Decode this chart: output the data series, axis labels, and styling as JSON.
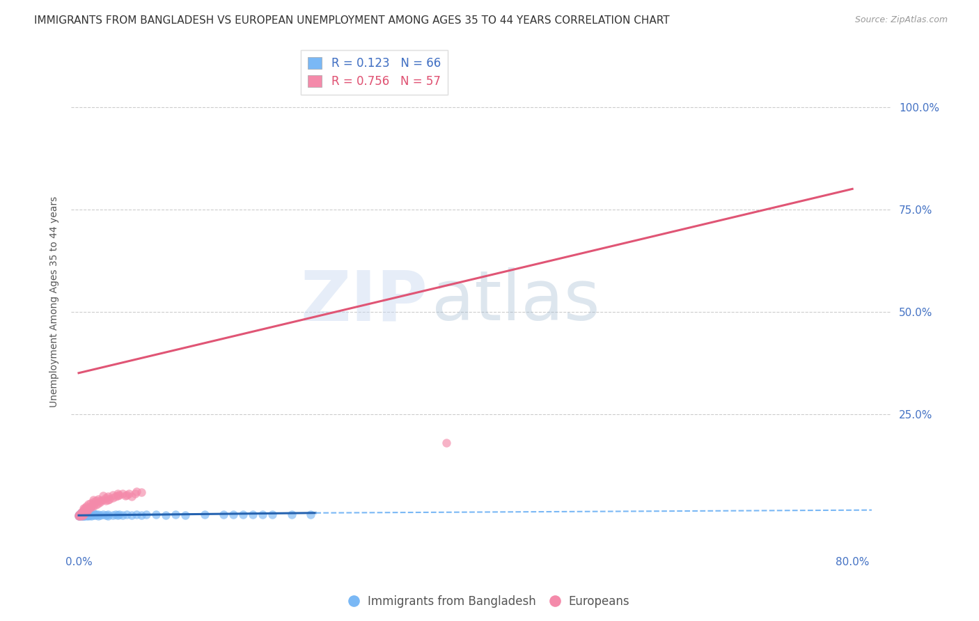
{
  "title": "IMMIGRANTS FROM BANGLADESH VS EUROPEAN UNEMPLOYMENT AMONG AGES 35 TO 44 YEARS CORRELATION CHART",
  "source": "Source: ZipAtlas.com",
  "ylabel": "Unemployment Among Ages 35 to 44 years",
  "ytick_labels": [
    "25.0%",
    "50.0%",
    "75.0%",
    "100.0%"
  ],
  "ytick_values": [
    0.25,
    0.5,
    0.75,
    1.0
  ],
  "xlim": [
    -0.008,
    0.84
  ],
  "ylim": [
    -0.08,
    1.13
  ],
  "blue_scatter": [
    [
      0.0,
      0.0
    ],
    [
      0.0,
      0.002
    ],
    [
      0.001,
      0.0
    ],
    [
      0.001,
      0.003
    ],
    [
      0.001,
      0.005
    ],
    [
      0.002,
      0.0
    ],
    [
      0.002,
      0.002
    ],
    [
      0.002,
      0.007
    ],
    [
      0.003,
      0.0
    ],
    [
      0.003,
      0.003
    ],
    [
      0.003,
      0.005
    ],
    [
      0.003,
      0.01
    ],
    [
      0.004,
      0.0
    ],
    [
      0.004,
      0.004
    ],
    [
      0.004,
      0.008
    ],
    [
      0.005,
      0.0
    ],
    [
      0.005,
      0.003
    ],
    [
      0.005,
      0.006
    ],
    [
      0.006,
      0.0
    ],
    [
      0.006,
      0.003
    ],
    [
      0.006,
      0.007
    ],
    [
      0.007,
      0.002
    ],
    [
      0.007,
      0.005
    ],
    [
      0.008,
      0.0
    ],
    [
      0.008,
      0.004
    ],
    [
      0.009,
      0.002
    ],
    [
      0.009,
      0.006
    ],
    [
      0.01,
      0.0
    ],
    [
      0.01,
      0.003
    ],
    [
      0.012,
      0.002
    ],
    [
      0.012,
      0.006
    ],
    [
      0.013,
      0.0
    ],
    [
      0.015,
      0.003
    ],
    [
      0.015,
      0.007
    ],
    [
      0.017,
      0.002
    ],
    [
      0.018,
      0.004
    ],
    [
      0.02,
      0.0
    ],
    [
      0.02,
      0.005
    ],
    [
      0.022,
      0.003
    ],
    [
      0.025,
      0.005
    ],
    [
      0.028,
      0.002
    ],
    [
      0.03,
      0.0
    ],
    [
      0.03,
      0.005
    ],
    [
      0.035,
      0.003
    ],
    [
      0.038,
      0.005
    ],
    [
      0.04,
      0.002
    ],
    [
      0.042,
      0.004
    ],
    [
      0.045,
      0.003
    ],
    [
      0.05,
      0.005
    ],
    [
      0.055,
      0.003
    ],
    [
      0.06,
      0.004
    ],
    [
      0.065,
      0.003
    ],
    [
      0.07,
      0.005
    ],
    [
      0.08,
      0.004
    ],
    [
      0.09,
      0.003
    ],
    [
      0.1,
      0.004
    ],
    [
      0.11,
      0.003
    ],
    [
      0.13,
      0.005
    ],
    [
      0.15,
      0.004
    ],
    [
      0.16,
      0.004
    ],
    [
      0.17,
      0.005
    ],
    [
      0.18,
      0.004
    ],
    [
      0.19,
      0.005
    ],
    [
      0.2,
      0.004
    ],
    [
      0.22,
      0.005
    ],
    [
      0.24,
      0.005
    ]
  ],
  "pink_scatter": [
    [
      0.0,
      0.0
    ],
    [
      0.0,
      0.003
    ],
    [
      0.001,
      0.0
    ],
    [
      0.001,
      0.005
    ],
    [
      0.002,
      0.002
    ],
    [
      0.002,
      0.008
    ],
    [
      0.003,
      0.0
    ],
    [
      0.003,
      0.01
    ],
    [
      0.004,
      0.003
    ],
    [
      0.004,
      0.012
    ],
    [
      0.005,
      0.005
    ],
    [
      0.005,
      0.015
    ],
    [
      0.005,
      0.02
    ],
    [
      0.006,
      0.008
    ],
    [
      0.006,
      0.018
    ],
    [
      0.007,
      0.01
    ],
    [
      0.007,
      0.022
    ],
    [
      0.008,
      0.012
    ],
    [
      0.008,
      0.025
    ],
    [
      0.009,
      0.015
    ],
    [
      0.01,
      0.02
    ],
    [
      0.01,
      0.03
    ],
    [
      0.012,
      0.022
    ],
    [
      0.012,
      0.032
    ],
    [
      0.013,
      0.025
    ],
    [
      0.015,
      0.025
    ],
    [
      0.015,
      0.035
    ],
    [
      0.015,
      0.04
    ],
    [
      0.016,
      0.03
    ],
    [
      0.018,
      0.028
    ],
    [
      0.018,
      0.038
    ],
    [
      0.02,
      0.032
    ],
    [
      0.02,
      0.042
    ],
    [
      0.022,
      0.035
    ],
    [
      0.022,
      0.038
    ],
    [
      0.025,
      0.04
    ],
    [
      0.025,
      0.05
    ],
    [
      0.028,
      0.038
    ],
    [
      0.028,
      0.045
    ],
    [
      0.03,
      0.04
    ],
    [
      0.03,
      0.048
    ],
    [
      0.032,
      0.042
    ],
    [
      0.035,
      0.045
    ],
    [
      0.035,
      0.052
    ],
    [
      0.038,
      0.048
    ],
    [
      0.04,
      0.05
    ],
    [
      0.04,
      0.055
    ],
    [
      0.042,
      0.052
    ],
    [
      0.045,
      0.055
    ],
    [
      0.048,
      0.05
    ],
    [
      0.05,
      0.052
    ],
    [
      0.052,
      0.055
    ],
    [
      0.055,
      0.048
    ],
    [
      0.058,
      0.055
    ],
    [
      0.06,
      0.06
    ],
    [
      0.065,
      0.058
    ],
    [
      0.38,
      0.18
    ]
  ],
  "blue_solid_line": {
    "x": [
      0.0,
      0.245
    ],
    "y": [
      0.002,
      0.008
    ]
  },
  "blue_dashed_line": {
    "x": [
      0.245,
      0.82
    ],
    "y": [
      0.008,
      0.015
    ]
  },
  "pink_line": {
    "x": [
      0.0,
      0.8
    ],
    "y": [
      0.35,
      0.8
    ]
  },
  "blue_scatter_color": "#7ab8f5",
  "pink_scatter_color": "#f48aaa",
  "blue_line_color": "#2563b0",
  "pink_line_color": "#e05575",
  "blue_dashed_color": "#7ab8f5",
  "background_color": "#ffffff",
  "grid_color": "#cccccc",
  "watermark_zip": "ZIP",
  "watermark_atlas": "atlas",
  "watermark_color_zip": "#c8d8f0",
  "watermark_color_atlas": "#a0b8d0",
  "title_fontsize": 11,
  "axis_fontsize": 10,
  "tick_fontsize": 11,
  "legend_r1": "R = 0.123   N = 66",
  "legend_r2": "R = 0.756   N = 57",
  "legend_color1": "#4472c4",
  "legend_color2": "#e05575",
  "bottom_legend1": "Immigrants from Bangladesh",
  "bottom_legend2": "Europeans"
}
